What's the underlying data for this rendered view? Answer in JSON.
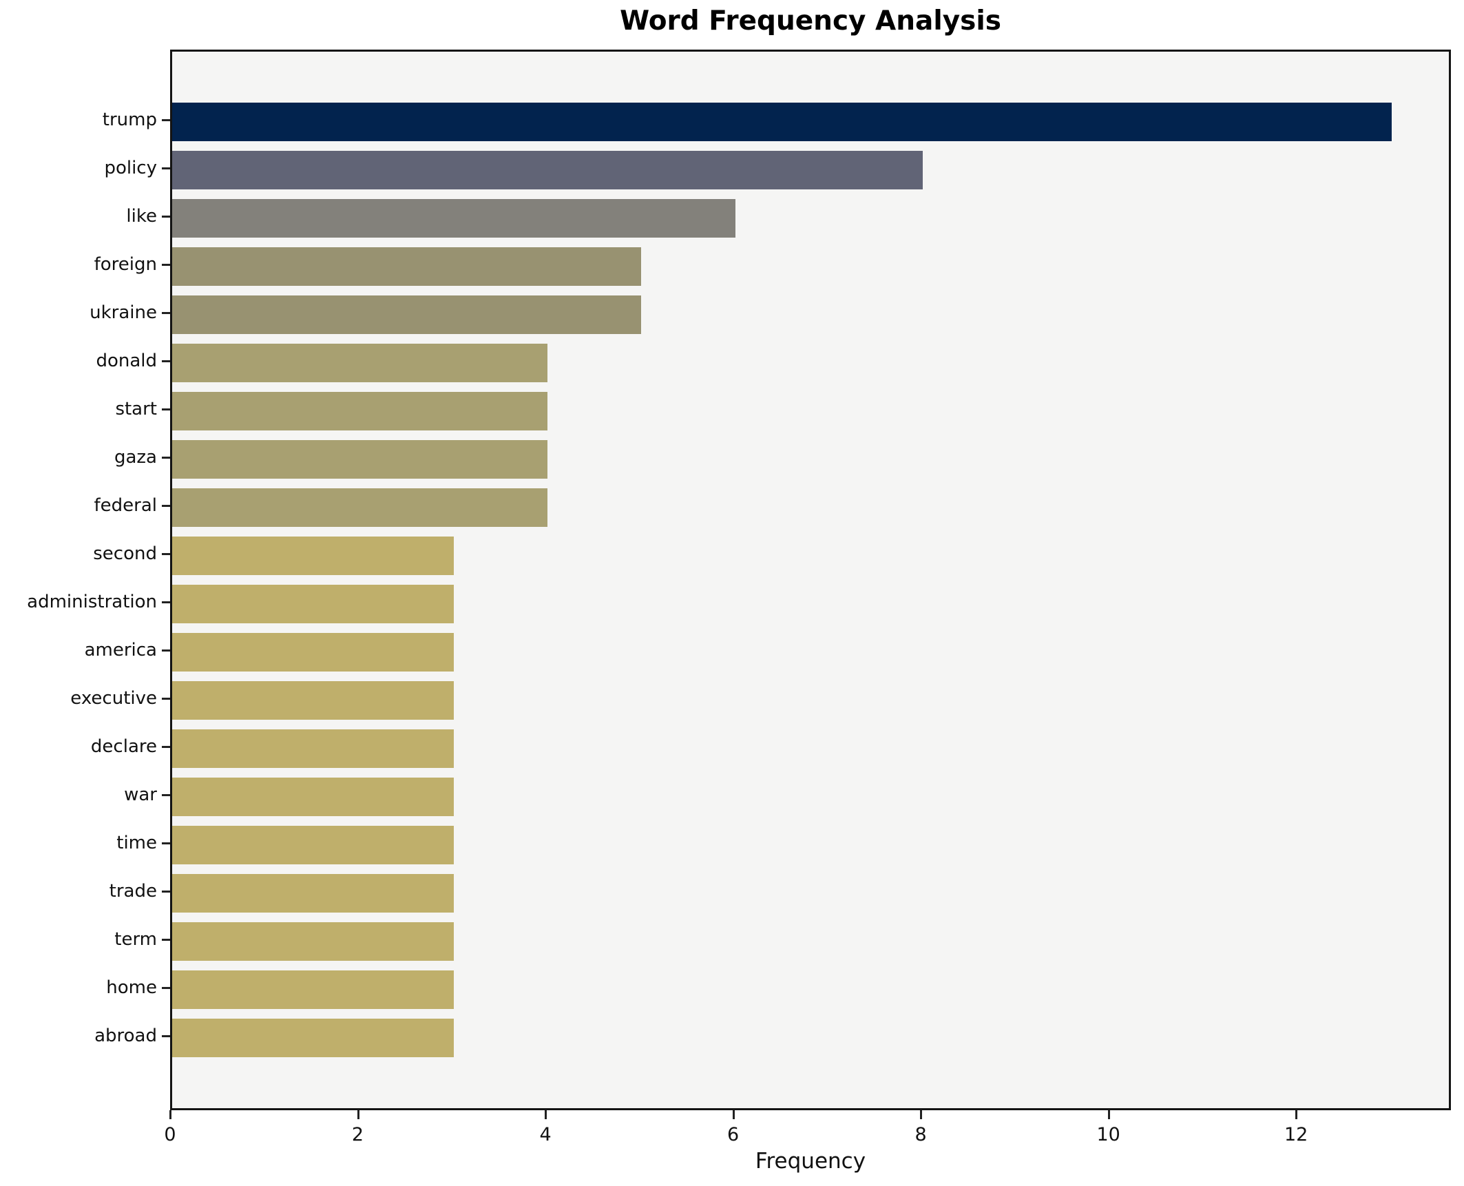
{
  "title": "Word Frequency Analysis",
  "axes": {
    "xlabel": "Frequency",
    "x_ticks": [
      0,
      2,
      4,
      6,
      8,
      10,
      12
    ]
  },
  "chart_data": {
    "type": "bar",
    "orientation": "horizontal",
    "title": "Word Frequency Analysis",
    "xlabel": "Frequency",
    "ylabel": "",
    "categories": [
      "trump",
      "policy",
      "like",
      "foreign",
      "ukraine",
      "donald",
      "start",
      "gaza",
      "federal",
      "second",
      "administration",
      "america",
      "executive",
      "declare",
      "war",
      "time",
      "trade",
      "term",
      "home",
      "abroad"
    ],
    "values": [
      13,
      8,
      6,
      5,
      5,
      4,
      4,
      4,
      4,
      3,
      3,
      3,
      3,
      3,
      3,
      3,
      3,
      3,
      3,
      3
    ],
    "bar_colors": [
      "#02234e",
      "#616476",
      "#83817b",
      "#989271",
      "#989271",
      "#a8a071",
      "#a8a071",
      "#a8a071",
      "#a8a071",
      "#bfaf6b",
      "#bfaf6b",
      "#bfaf6b",
      "#bfaf6b",
      "#bfaf6b",
      "#bfaf6b",
      "#bfaf6b",
      "#bfaf6b",
      "#bfaf6b",
      "#bfaf6b",
      "#bfaf6b"
    ],
    "xlim": [
      0,
      13.65
    ],
    "x_ticks": [
      0,
      2,
      4,
      6,
      8,
      10,
      12
    ],
    "grid": false,
    "legend": null,
    "plot_bg": "#f5f5f4",
    "figure_bg": "#ffffff",
    "bar_height_ratio": 0.8
  }
}
